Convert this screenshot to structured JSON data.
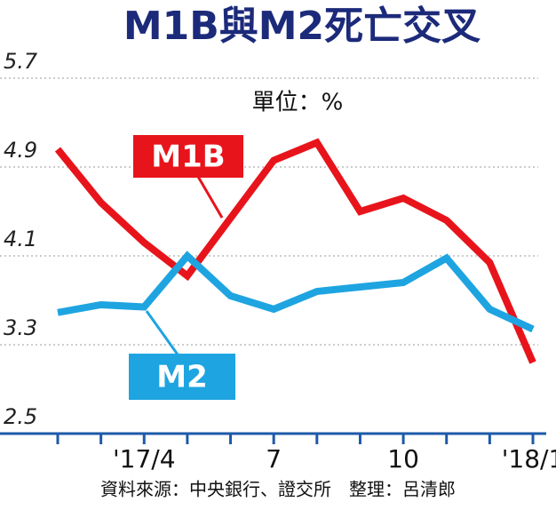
{
  "chart_data": {
    "type": "line",
    "title": "M1B與M2死亡交叉",
    "subtitle": "單位：%",
    "source": "資料來源：中央銀行、證交所　整理：呂清郎",
    "categories": [
      null,
      null,
      "'17/4",
      null,
      null,
      "7",
      null,
      null,
      "10",
      null,
      null,
      "'18/1"
    ],
    "series": [
      {
        "name": "M1B",
        "color": "#e8141b",
        "values": [
          5.06,
          4.58,
          4.22,
          3.92,
          4.44,
          4.96,
          5.12,
          4.5,
          4.62,
          4.42,
          4.04,
          3.14
        ]
      },
      {
        "name": "M2",
        "color": "#1ea4e0",
        "values": [
          3.59,
          3.66,
          3.64,
          4.1,
          3.74,
          3.62,
          3.78,
          3.82,
          3.86,
          4.08,
          3.62,
          3.44
        ]
      }
    ],
    "ylim": [
      2.5,
      5.7
    ],
    "yticks": [
      2.5,
      3.3,
      4.1,
      4.9,
      5.7
    ],
    "grid": true
  }
}
